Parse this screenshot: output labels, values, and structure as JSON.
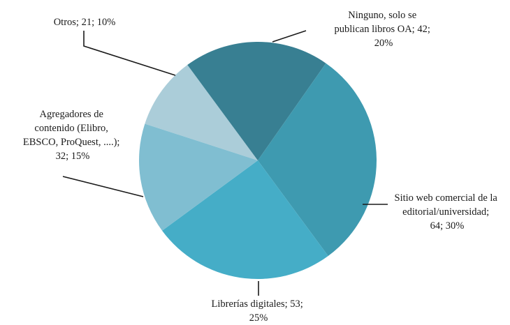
{
  "chart_data": {
    "type": "pie",
    "start_angle_deg": -162,
    "direction": "clockwise",
    "slices": [
      {
        "name": "Otros",
        "value": 21,
        "percent": 10,
        "color": "#abcdd9",
        "label_lines": [
          "Otros; 21; 10%"
        ]
      },
      {
        "name": "Ninguno, solo se publican libros OA",
        "value": 42,
        "percent": 20,
        "color": "#387f92",
        "label_lines": [
          "Ninguno, solo se",
          "publican libros OA; 42;",
          "20%"
        ]
      },
      {
        "name": "Sitio web comercial de la editorial/universidad",
        "value": 64,
        "percent": 30,
        "color": "#3e9ab0",
        "label_lines": [
          "Sitio web comercial de la",
          "editorial/universidad;",
          "64; 30%"
        ]
      },
      {
        "name": "Librerías digitales",
        "value": 53,
        "percent": 25,
        "color": "#45adc7",
        "label_lines": [
          "Librerías digitales; 53;",
          "25%"
        ]
      },
      {
        "name": "Agregadores de contenido (Elibro, EBSCO, ProQuest, ....)",
        "value": 32,
        "percent": 15,
        "color": "#80bed1",
        "label_lines": [
          "Agregadores de",
          "contenido (Elibro,",
          "EBSCO, ProQuest, ....);",
          "32; 15%"
        ]
      }
    ]
  }
}
